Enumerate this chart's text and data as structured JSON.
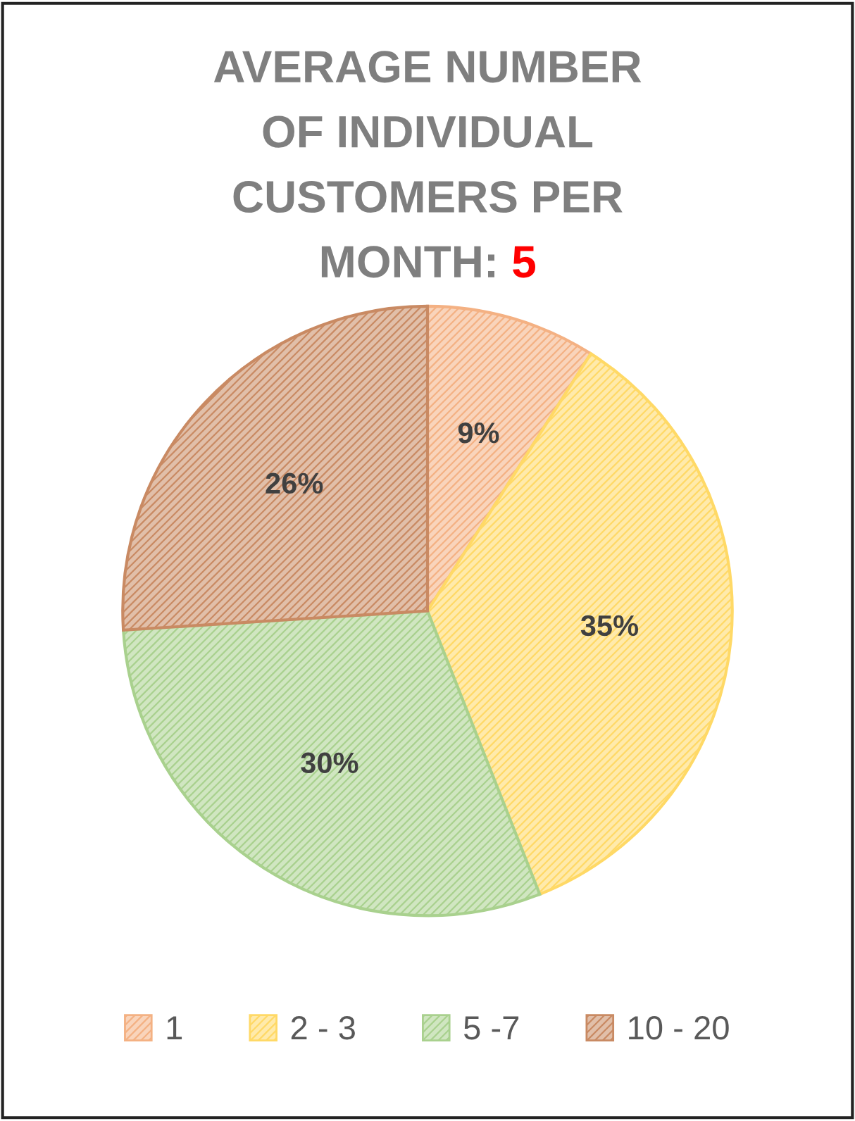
{
  "chart_data": {
    "type": "pie",
    "title": "AVERAGE NUMBER OF INDIVIDUAL CUSTOMERS PER MONTH:",
    "annotations": [
      "5"
    ],
    "categories": [
      "1",
      "2 - 3",
      "5 -7",
      "10 - 20"
    ],
    "values": [
      9,
      35,
      30,
      26
    ],
    "colors": [
      "#f4b183",
      "#ffd966",
      "#a9d18e",
      "#c98a63"
    ],
    "value_labels": [
      "9%",
      "35%",
      "30%",
      "26%"
    ],
    "legend": "bottom"
  }
}
